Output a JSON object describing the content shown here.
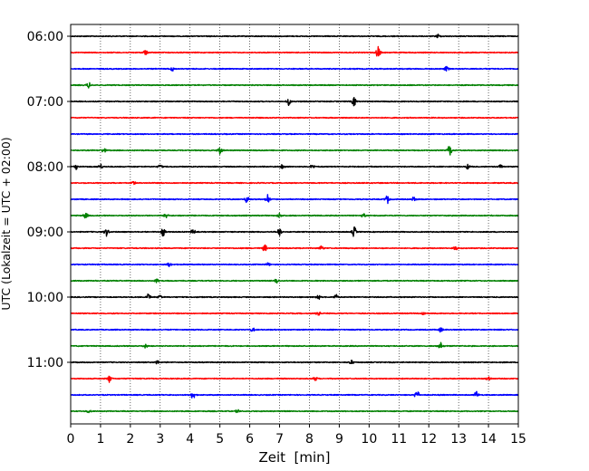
{
  "chart_data": {
    "type": "line",
    "title": "",
    "xlabel": "Zeit  [min]",
    "ylabel": "UTC (Lokalzeit = UTC + 02:00)",
    "xlim": [
      0,
      15
    ],
    "x_ticks": [
      0,
      1,
      2,
      3,
      4,
      5,
      6,
      7,
      8,
      9,
      10,
      11,
      12,
      13,
      14,
      15
    ],
    "x_tick_labels": [
      "0",
      "1",
      "2",
      "3",
      "4",
      "5",
      "6",
      "7",
      "8",
      "9",
      "10",
      "11",
      "12",
      "13",
      "14",
      "15"
    ],
    "y_tick_labels": [
      "06:00",
      "07:00",
      "08:00",
      "09:00",
      "10:00",
      "11:00"
    ],
    "vertical_grid": true,
    "series_colors": [
      "#000000",
      "#ff0000",
      "#0000ff",
      "#008000"
    ],
    "row_minutes_per_trace": 15,
    "trace_start_times": [
      "06:00",
      "06:15",
      "06:30",
      "06:45",
      "07:00",
      "07:15",
      "07:30",
      "07:45",
      "08:00",
      "08:15",
      "08:30",
      "08:45",
      "09:00",
      "09:15",
      "09:30",
      "09:45",
      "10:00",
      "10:15",
      "10:30",
      "10:45",
      "11:00",
      "11:15",
      "11:30",
      "11:45"
    ],
    "events": [
      [
        [
          12.3,
          0.6
        ]
      ],
      [
        [
          2.5,
          0.8
        ],
        [
          10.3,
          2.4
        ]
      ],
      [
        [
          3.4,
          0.8
        ],
        [
          12.6,
          0.9
        ]
      ],
      [
        [
          0.6,
          1.0
        ]
      ],
      [
        [
          7.3,
          1.2
        ],
        [
          9.5,
          1.6
        ]
      ],
      [],
      [],
      [
        [
          1.1,
          1.0
        ],
        [
          5.0,
          1.6
        ],
        [
          12.7,
          1.8
        ]
      ],
      [
        [
          0.2,
          0.9
        ],
        [
          1.0,
          0.8
        ],
        [
          3.0,
          0.8
        ],
        [
          7.1,
          0.8
        ],
        [
          8.1,
          0.8
        ],
        [
          13.3,
          0.8
        ],
        [
          14.4,
          0.8
        ]
      ],
      [
        [
          2.1,
          0.7
        ]
      ],
      [
        [
          5.9,
          1.6
        ],
        [
          6.6,
          2.0
        ],
        [
          10.6,
          1.6
        ],
        [
          11.5,
          0.8
        ]
      ],
      [
        [
          0.5,
          1.0
        ],
        [
          3.2,
          0.8
        ],
        [
          7.0,
          0.9
        ],
        [
          9.8,
          0.8
        ]
      ],
      [
        [
          1.2,
          1.4
        ],
        [
          3.1,
          1.4
        ],
        [
          4.1,
          1.0
        ],
        [
          7.0,
          1.4
        ],
        [
          9.5,
          1.8
        ]
      ],
      [
        [
          6.5,
          1.2
        ],
        [
          8.4,
          1.0
        ],
        [
          12.9,
          0.8
        ]
      ],
      [
        [
          3.3,
          0.6
        ],
        [
          6.6,
          0.6
        ]
      ],
      [
        [
          2.9,
          0.8
        ],
        [
          6.9,
          0.8
        ]
      ],
      [
        [
          2.6,
          1.2
        ],
        [
          3.0,
          0.8
        ],
        [
          8.3,
          0.8
        ],
        [
          8.9,
          0.8
        ]
      ],
      [
        [
          8.3,
          1.2
        ],
        [
          11.8,
          0.8
        ]
      ],
      [
        [
          6.1,
          0.7
        ],
        [
          12.4,
          0.7
        ]
      ],
      [
        [
          2.5,
          0.7
        ],
        [
          12.4,
          1.2
        ]
      ],
      [
        [
          2.9,
          0.7
        ],
        [
          9.4,
          0.8
        ]
      ],
      [
        [
          1.3,
          1.2
        ],
        [
          8.2,
          0.8
        ],
        [
          14.0,
          0.8
        ]
      ],
      [
        [
          4.1,
          1.4
        ],
        [
          11.6,
          2.0
        ],
        [
          13.6,
          1.4
        ]
      ],
      [
        [
          0.6,
          0.6
        ],
        [
          5.6,
          0.6
        ]
      ]
    ]
  }
}
